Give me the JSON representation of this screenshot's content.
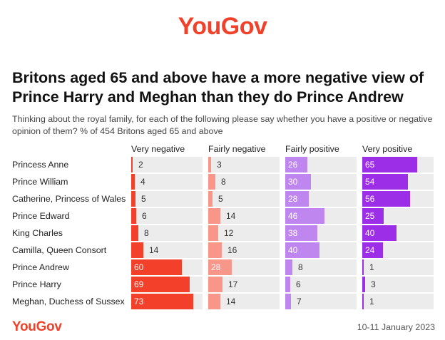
{
  "brand": "YouGov",
  "header": {
    "title": "Britons aged 65 and above have a more negative view of Prince Harry and Meghan than they do Prince Andrew",
    "subtitle": "Thinking about the royal family, for each of the following please say whether you have a positive or negative opinion of them? % of 454 Britons aged 65 and above"
  },
  "footer": {
    "brand": "YouGov",
    "date": "10-11 January 2023"
  },
  "colors": {
    "very_negative": "#f2402a",
    "fairly_negative": "#f8968a",
    "fairly_positive": "#bf86f0",
    "very_positive": "#9b2ee6",
    "track": "#ececec",
    "brand": "#f0412a"
  },
  "chart_data": {
    "type": "bar",
    "orientation": "horizontal",
    "layout": "small-multiples",
    "categories": [
      "Princess Anne",
      "Prince William",
      "Catherine, Princess of Wales",
      "Prince Edward",
      "King Charles",
      "Camilla, Queen Consort",
      "Prince Andrew",
      "Prince Harry",
      "Meghan, Duchess of Sussex"
    ],
    "series": [
      {
        "name": "Very negative",
        "values": [
          2,
          4,
          5,
          6,
          8,
          14,
          60,
          69,
          73
        ]
      },
      {
        "name": "Fairly negative",
        "values": [
          3,
          8,
          5,
          14,
          12,
          16,
          28,
          17,
          14
        ]
      },
      {
        "name": "Fairly positive",
        "values": [
          26,
          30,
          28,
          46,
          38,
          40,
          8,
          6,
          7
        ]
      },
      {
        "name": "Very positive",
        "values": [
          65,
          54,
          56,
          25,
          40,
          24,
          1,
          3,
          1
        ]
      }
    ],
    "xlim": [
      0,
      80
    ],
    "grid": false,
    "legend": "column headers"
  }
}
